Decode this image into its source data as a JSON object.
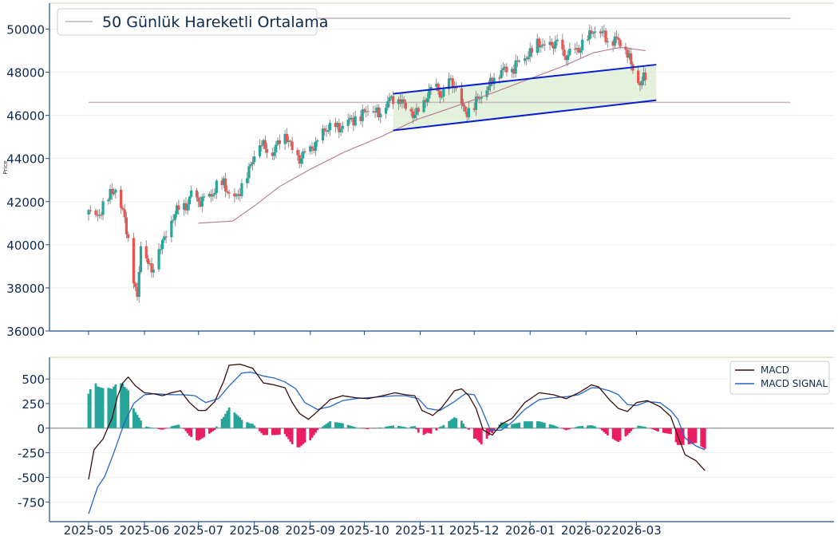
{
  "chart_data": [
    {
      "type": "candlestick",
      "ylabel": "Price",
      "ylim": [
        36000,
        51200
      ],
      "yticks": [
        36000,
        38000,
        40000,
        42000,
        44000,
        46000,
        48000,
        50000
      ],
      "legend": {
        "position": "top-left",
        "entries": [
          "50 Günlük Hareketli Ortalama"
        ]
      },
      "moving_average_label": "50 Günlük Hareketli Ortalama",
      "close_path": [
        [
          "2025-05-01",
          41400
        ],
        [
          "2025-05-05",
          41200
        ],
        [
          "2025-05-09",
          41900
        ],
        [
          "2025-05-13",
          42200
        ],
        [
          "2025-05-16",
          42500
        ],
        [
          "2025-05-20",
          41700
        ],
        [
          "2025-05-23",
          40300
        ],
        [
          "2025-05-26",
          38300
        ],
        [
          "2025-05-28",
          37400
        ],
        [
          "2025-05-30",
          40200
        ],
        [
          "2025-06-02",
          39600
        ],
        [
          "2025-06-05",
          38600
        ],
        [
          "2025-06-09",
          39800
        ],
        [
          "2025-06-13",
          40600
        ],
        [
          "2025-06-17",
          41200
        ],
        [
          "2025-06-20",
          41600
        ],
        [
          "2025-06-24",
          41900
        ],
        [
          "2025-06-27",
          42400
        ],
        [
          "2025-07-01",
          41800
        ],
        [
          "2025-07-04",
          42200
        ],
        [
          "2025-07-08",
          42300
        ],
        [
          "2025-07-11",
          42600
        ],
        [
          "2025-07-15",
          42800
        ],
        [
          "2025-07-19",
          42400
        ],
        [
          "2025-07-23",
          42100
        ],
        [
          "2025-07-27",
          43200
        ],
        [
          "2025-07-31",
          44000
        ],
        [
          "2025-08-02",
          44700
        ],
        [
          "2025-08-06",
          44500
        ],
        [
          "2025-08-10",
          44300
        ],
        [
          "2025-08-14",
          44700
        ],
        [
          "2025-08-18",
          45000
        ],
        [
          "2025-08-22",
          44600
        ],
        [
          "2025-08-26",
          43900
        ],
        [
          "2025-08-30",
          44200
        ],
        [
          "2025-09-03",
          44700
        ],
        [
          "2025-09-07",
          45000
        ],
        [
          "2025-09-11",
          45300
        ],
        [
          "2025-09-15",
          45600
        ],
        [
          "2025-09-19",
          45400
        ],
        [
          "2025-09-23",
          45700
        ],
        [
          "2025-09-27",
          46000
        ],
        [
          "2025-10-01",
          46100
        ],
        [
          "2025-10-05",
          46300
        ],
        [
          "2025-10-09",
          46200
        ],
        [
          "2025-10-13",
          46500
        ],
        [
          "2025-10-17",
          46700
        ],
        [
          "2025-10-21",
          46900
        ],
        [
          "2025-10-25",
          46200
        ],
        [
          "2025-10-28",
          45900
        ],
        [
          "2025-11-01",
          46400
        ],
        [
          "2025-11-05",
          46900
        ],
        [
          "2025-11-09",
          47300
        ],
        [
          "2025-11-13",
          47000
        ],
        [
          "2025-11-17",
          47600
        ],
        [
          "2025-11-20",
          47200
        ],
        [
          "2025-11-23",
          46700
        ],
        [
          "2025-11-26",
          46300
        ],
        [
          "2025-11-30",
          46100
        ],
        [
          "2025-12-03",
          46700
        ],
        [
          "2025-12-07",
          47300
        ],
        [
          "2025-12-11",
          47600
        ],
        [
          "2025-12-15",
          47900
        ],
        [
          "2025-12-19",
          48400
        ],
        [
          "2025-12-23",
          48100
        ],
        [
          "2025-12-27",
          48600
        ],
        [
          "2025-12-31",
          48900
        ],
        [
          "2026-01-04",
          49300
        ],
        [
          "2026-01-08",
          49100
        ],
        [
          "2026-01-12",
          49400
        ],
        [
          "2026-01-16",
          49300
        ],
        [
          "2026-01-20",
          48600
        ],
        [
          "2026-01-24",
          49200
        ],
        [
          "2026-01-28",
          48900
        ],
        [
          "2026-02-01",
          49500
        ],
        [
          "2026-02-05",
          50100
        ],
        [
          "2026-02-09",
          49800
        ],
        [
          "2026-02-13",
          49400
        ],
        [
          "2026-02-17",
          49700
        ],
        [
          "2026-02-21",
          49300
        ],
        [
          "2026-02-25",
          48600
        ],
        [
          "2026-02-28",
          48100
        ],
        [
          "2026-03-03",
          47500
        ],
        [
          "2026-03-06",
          47700
        ]
      ],
      "moving_average": [
        [
          "2025-07-01",
          41000
        ],
        [
          "2025-07-20",
          41100
        ],
        [
          "2025-08-01",
          41800
        ],
        [
          "2025-08-15",
          42700
        ],
        [
          "2025-09-01",
          43500
        ],
        [
          "2025-09-20",
          44300
        ],
        [
          "2025-10-10",
          45000
        ],
        [
          "2025-10-30",
          45800
        ],
        [
          "2025-11-20",
          46400
        ],
        [
          "2025-12-10",
          47000
        ],
        [
          "2026-01-01",
          47700
        ],
        [
          "2026-01-20",
          48300
        ],
        [
          "2026-02-05",
          48900
        ],
        [
          "2026-02-20",
          49150
        ],
        [
          "2026-03-06",
          49000
        ]
      ],
      "horizontal_lines": [
        50500,
        46600
      ],
      "channel": {
        "x": [
          "2025-10-17",
          "2026-03-12"
        ],
        "upper": [
          47000,
          48350
        ],
        "lower": [
          45300,
          46700
        ]
      }
    },
    {
      "type": "macd",
      "ylim": [
        -950,
        720
      ],
      "yticks": [
        500,
        250,
        0,
        -250,
        -500,
        -750
      ],
      "legend": {
        "position": "top-right",
        "entries": [
          "MACD",
          "MACD SIGNAL"
        ]
      },
      "macd_label": "MACD",
      "signal_label": "MACD SIGNAL",
      "macd": [
        [
          "2025-05-01",
          -520
        ],
        [
          "2025-05-04",
          -220
        ],
        [
          "2025-05-09",
          -110
        ],
        [
          "2025-05-14",
          100
        ],
        [
          "2025-05-17",
          320
        ],
        [
          "2025-05-20",
          460
        ],
        [
          "2025-05-23",
          520
        ],
        [
          "2025-05-27",
          430
        ],
        [
          "2025-06-01",
          360
        ],
        [
          "2025-06-06",
          350
        ],
        [
          "2025-06-11",
          330
        ],
        [
          "2025-06-16",
          360
        ],
        [
          "2025-06-21",
          380
        ],
        [
          "2025-06-26",
          260
        ],
        [
          "2025-07-01",
          180
        ],
        [
          "2025-07-05",
          180
        ],
        [
          "2025-07-10",
          270
        ],
        [
          "2025-07-15",
          480
        ],
        [
          "2025-07-18",
          640
        ],
        [
          "2025-07-24",
          650
        ],
        [
          "2025-07-31",
          610
        ],
        [
          "2025-08-06",
          460
        ],
        [
          "2025-08-12",
          440
        ],
        [
          "2025-08-18",
          410
        ],
        [
          "2025-08-22",
          260
        ],
        [
          "2025-08-26",
          150
        ],
        [
          "2025-08-31",
          90
        ],
        [
          "2025-09-05",
          170
        ],
        [
          "2025-09-12",
          290
        ],
        [
          "2025-09-19",
          330
        ],
        [
          "2025-09-26",
          310
        ],
        [
          "2025-10-03",
          300
        ],
        [
          "2025-10-11",
          330
        ],
        [
          "2025-10-18",
          360
        ],
        [
          "2025-10-24",
          340
        ],
        [
          "2025-10-29",
          330
        ],
        [
          "2025-11-02",
          180
        ],
        [
          "2025-11-08",
          130
        ],
        [
          "2025-11-13",
          210
        ],
        [
          "2025-11-20",
          380
        ],
        [
          "2025-11-24",
          400
        ],
        [
          "2025-11-28",
          330
        ],
        [
          "2025-12-02",
          200
        ],
        [
          "2025-12-06",
          -20
        ],
        [
          "2025-12-11",
          -70
        ],
        [
          "2025-12-16",
          40
        ],
        [
          "2025-12-22",
          100
        ],
        [
          "2025-12-29",
          260
        ],
        [
          "2026-01-06",
          360
        ],
        [
          "2026-01-14",
          340
        ],
        [
          "2026-01-21",
          300
        ],
        [
          "2026-01-28",
          360
        ],
        [
          "2026-02-04",
          440
        ],
        [
          "2026-02-08",
          420
        ],
        [
          "2026-02-14",
          290
        ],
        [
          "2026-02-19",
          200
        ],
        [
          "2026-02-24",
          170
        ],
        [
          "2026-03-01",
          260
        ],
        [
          "2026-03-07",
          280
        ],
        [
          "2026-03-14",
          220
        ],
        [
          "2026-03-20",
          120
        ],
        [
          "2026-03-24",
          -80
        ],
        [
          "2026-03-28",
          -270
        ],
        [
          "2026-04-03",
          -330
        ],
        [
          "2026-04-08",
          -430
        ]
      ],
      "signal": [
        [
          "2025-05-01",
          -870
        ],
        [
          "2025-05-06",
          -600
        ],
        [
          "2025-05-10",
          -490
        ],
        [
          "2025-05-15",
          -250
        ],
        [
          "2025-05-21",
          60
        ],
        [
          "2025-05-26",
          250
        ],
        [
          "2025-06-01",
          340
        ],
        [
          "2025-06-07",
          350
        ],
        [
          "2025-06-16",
          340
        ],
        [
          "2025-06-23",
          340
        ],
        [
          "2025-06-29",
          330
        ],
        [
          "2025-07-05",
          260
        ],
        [
          "2025-07-12",
          300
        ],
        [
          "2025-07-18",
          430
        ],
        [
          "2025-07-25",
          560
        ],
        [
          "2025-07-30",
          570
        ],
        [
          "2025-08-06",
          530
        ],
        [
          "2025-08-12",
          510
        ],
        [
          "2025-08-18",
          470
        ],
        [
          "2025-08-24",
          400
        ],
        [
          "2025-08-29",
          260
        ],
        [
          "2025-09-05",
          190
        ],
        [
          "2025-09-12",
          220
        ],
        [
          "2025-09-19",
          280
        ],
        [
          "2025-09-26",
          300
        ],
        [
          "2025-10-03",
          310
        ],
        [
          "2025-10-11",
          320
        ],
        [
          "2025-10-18",
          330
        ],
        [
          "2025-10-24",
          330
        ],
        [
          "2025-10-31",
          300
        ],
        [
          "2025-11-05",
          200
        ],
        [
          "2025-11-12",
          180
        ],
        [
          "2025-11-20",
          270
        ],
        [
          "2025-11-26",
          350
        ],
        [
          "2025-12-01",
          340
        ],
        [
          "2025-12-05",
          200
        ],
        [
          "2025-12-10",
          -20
        ],
        [
          "2025-12-16",
          -20
        ],
        [
          "2025-12-22",
          60
        ],
        [
          "2025-12-29",
          190
        ],
        [
          "2026-01-06",
          290
        ],
        [
          "2026-01-14",
          310
        ],
        [
          "2026-01-21",
          320
        ],
        [
          "2026-01-28",
          340
        ],
        [
          "2026-02-04",
          410
        ],
        [
          "2026-02-08",
          410
        ],
        [
          "2026-02-14",
          380
        ],
        [
          "2026-02-19",
          340
        ],
        [
          "2026-02-24",
          240
        ],
        [
          "2026-03-01",
          230
        ],
        [
          "2026-03-07",
          270
        ],
        [
          "2026-03-14",
          260
        ],
        [
          "2026-03-20",
          180
        ],
        [
          "2026-03-24",
          90
        ],
        [
          "2026-03-28",
          -100
        ],
        [
          "2026-04-03",
          -180
        ],
        [
          "2026-04-08",
          -220
        ]
      ]
    }
  ],
  "x_axis": {
    "tick_labels": [
      "2025-05",
      "2025-06",
      "2025-07",
      "2025-08",
      "2025-09",
      "2025-10",
      "2025-11",
      "2025-12",
      "2026-01",
      "2026-02",
      "2026-03"
    ]
  },
  "colors": {
    "up": "#26a69a",
    "down": "#ef5350",
    "hist_up": "#26a69a",
    "hist_down": "#e91e63",
    "moving_average": "#b3778f",
    "channel_line": "#0b1fd1",
    "channel_fill": "#dcedd4",
    "horizontal_line": "#c9b6bf",
    "macd_line": "#3b0c0c",
    "signal_line": "#2466c8",
    "axis": "#1f4e8c"
  }
}
